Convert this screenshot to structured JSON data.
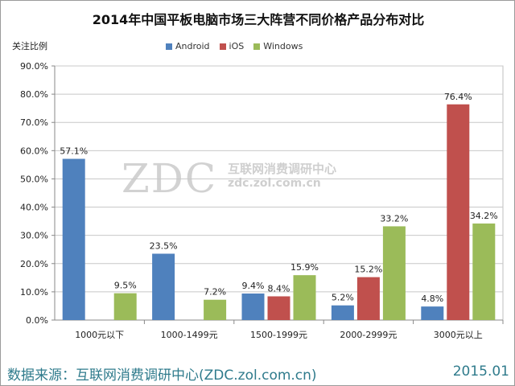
{
  "title": "2014年中国平板电脑市场三大阵营不同价格产品分布对比",
  "ylabel": "关注比例",
  "watermark": {
    "logo": "ZDC",
    "cn": "互联网消费调研中心",
    "url": "zdc.zol.com.cn"
  },
  "footer": {
    "source": "数据来源：互联网消费调研中心(ZDC.zol.com.cn)",
    "date": "2015.01"
  },
  "chart_data": {
    "type": "bar",
    "categories": [
      "1000元以下",
      "1000-1499元",
      "1500-1999元",
      "2000-2999元",
      "3000元以上"
    ],
    "series": [
      {
        "name": "Android",
        "color": "#4f81bd",
        "values": [
          57.1,
          23.5,
          9.4,
          5.2,
          4.8
        ]
      },
      {
        "name": "iOS",
        "color": "#c0504d",
        "values": [
          null,
          null,
          8.4,
          15.2,
          76.4
        ]
      },
      {
        "name": "Windows",
        "color": "#9bbb59",
        "values": [
          9.5,
          7.2,
          15.9,
          33.2,
          34.2
        ]
      }
    ],
    "ylim": [
      0,
      90
    ],
    "yticks": [
      "0.0%",
      "10.0%",
      "20.0%",
      "30.0%",
      "40.0%",
      "50.0%",
      "60.0%",
      "70.0%",
      "80.0%",
      "90.0%"
    ],
    "value_format": "%",
    "legend": "top",
    "grid": true
  }
}
